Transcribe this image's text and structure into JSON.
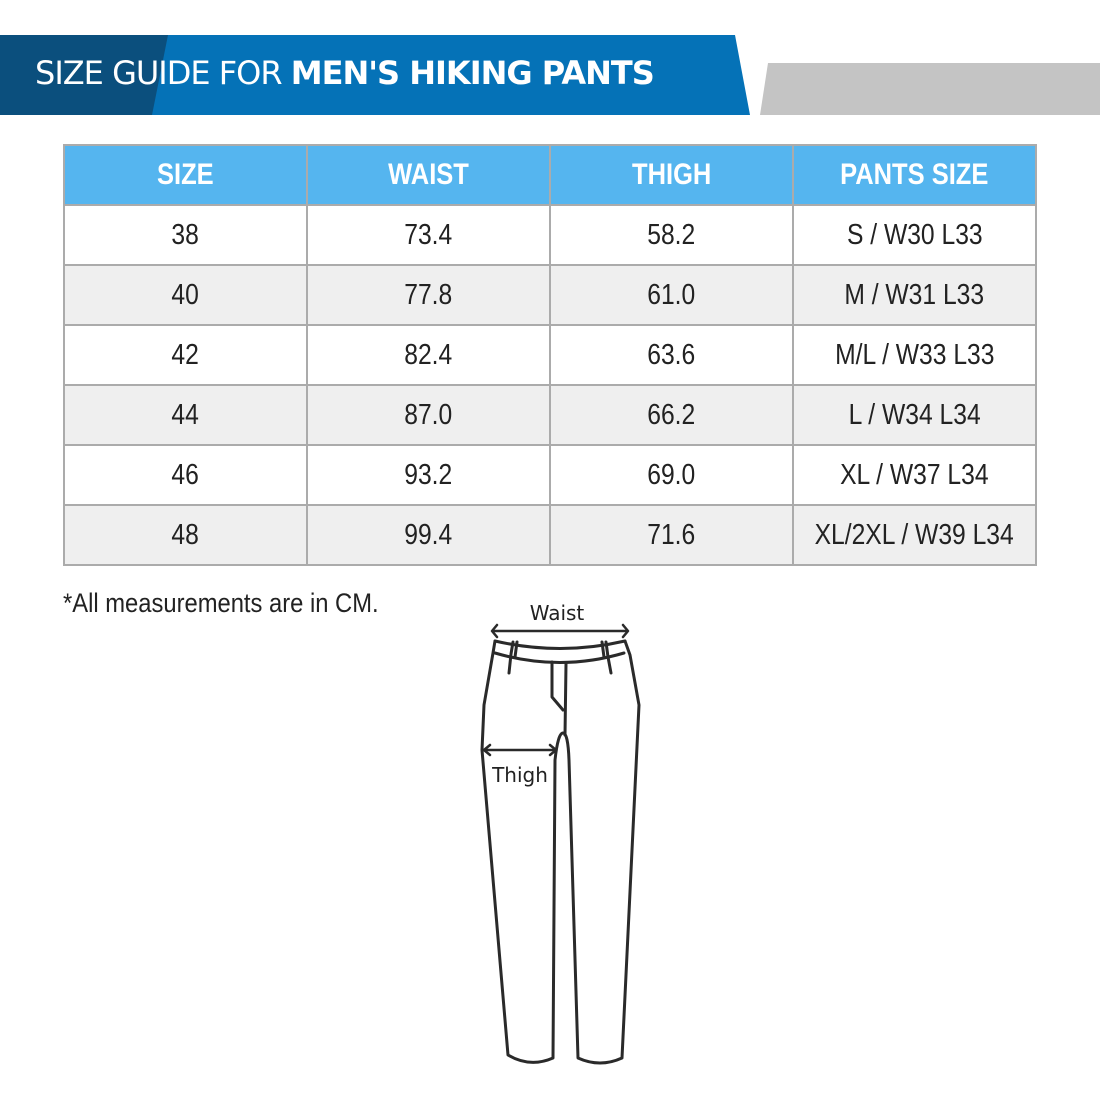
{
  "header": {
    "title_light": "SIZE GUIDE FOR ",
    "title_bold": "MEN'S HIKING PANTS"
  },
  "colors": {
    "banner_dark": "#0b4f7d",
    "banner_blue": "#0572b7",
    "banner_gray": "#c4c4c4",
    "table_header": "#55b5ef",
    "row_alt": "#efefef"
  },
  "table": {
    "headers": [
      "SIZE",
      "WAIST",
      "THIGH",
      "PANTS SIZE"
    ],
    "rows": [
      [
        "38",
        "73.4",
        "58.2",
        "S / W30 L33"
      ],
      [
        "40",
        "77.8",
        "61.0",
        "M / W31 L33"
      ],
      [
        "42",
        "82.4",
        "63.6",
        "M/L / W33 L33"
      ],
      [
        "44",
        "87.0",
        "66.2",
        "L / W34 L34"
      ],
      [
        "46",
        "93.2",
        "69.0",
        "XL / W37 L34"
      ],
      [
        "48",
        "99.4",
        "71.6",
        "XL/2XL / W39 L34"
      ]
    ]
  },
  "note": "*All measurements are in CM.",
  "diagram": {
    "waist_label": "Waist",
    "thigh_label": "Thigh"
  }
}
